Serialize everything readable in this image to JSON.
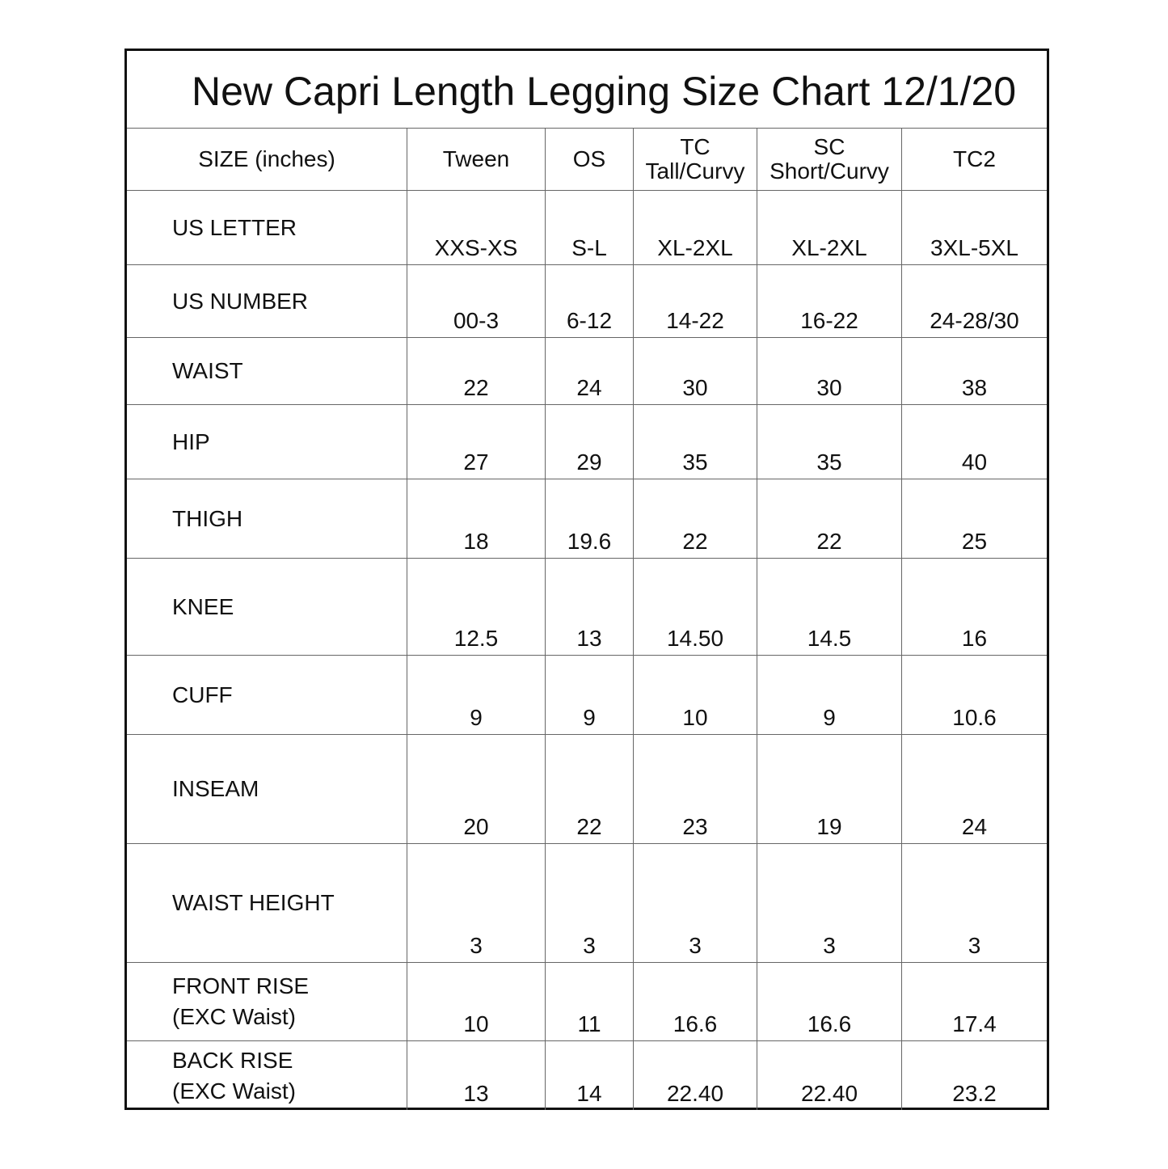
{
  "title": "New Capri Length Legging Size Chart 12/1/20",
  "header": [
    "SIZE (inches)",
    "Tween",
    "OS",
    "TC\nTall/Curvy",
    "SC\nShort/Curvy",
    "TC2"
  ],
  "rows": [
    {
      "label": "US LETTER",
      "values": [
        "XXS-XS",
        "S-L",
        "XL-2XL",
        "XL-2XL",
        "3XL-5XL"
      ]
    },
    {
      "label": "US NUMBER",
      "values": [
        "00-3",
        "6-12",
        "14-22",
        "16-22",
        "24-28/30"
      ]
    },
    {
      "label": "WAIST",
      "values": [
        "22",
        "24",
        "30",
        "30",
        "38"
      ]
    },
    {
      "label": "HIP",
      "values": [
        "27",
        "29",
        "35",
        "35",
        "40"
      ]
    },
    {
      "label": "THIGH",
      "values": [
        "18",
        "19.6",
        "22",
        "22",
        "25"
      ]
    },
    {
      "label": "KNEE",
      "values": [
        "12.5",
        "13",
        "14.50",
        "14.5",
        "16"
      ]
    },
    {
      "label": "CUFF",
      "values": [
        "9",
        "9",
        "10",
        "9",
        "10.6"
      ]
    },
    {
      "label": "INSEAM",
      "values": [
        "20",
        "22",
        "23",
        "19",
        "24"
      ]
    },
    {
      "label": "WAIST HEIGHT",
      "values": [
        "3",
        "3",
        "3",
        "3",
        "3"
      ]
    },
    {
      "label": "FRONT RISE\n(EXC Waist)",
      "values": [
        "10",
        "11",
        "16.6",
        "16.6",
        "17.4"
      ]
    },
    {
      "label": "BACK RISE\n(EXC Waist)",
      "values": [
        "13",
        "14",
        "22.40",
        "22.40",
        "23.2"
      ]
    }
  ]
}
